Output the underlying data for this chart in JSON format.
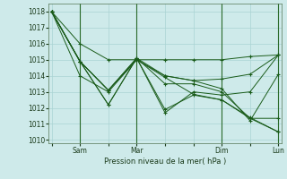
{
  "background_color": "#ceeaea",
  "grid_color": "#aad4d4",
  "line_color": "#1a5c1a",
  "marker_color": "#1a5c1a",
  "xlabel_text": "Pression niveau de la mer( hPa )",
  "ylim": [
    1009.8,
    1018.5
  ],
  "yticks": [
    1010,
    1011,
    1012,
    1013,
    1014,
    1015,
    1016,
    1017,
    1018
  ],
  "xtick_labels": [
    "",
    "Sam",
    "",
    "Mar",
    "",
    "",
    "Dim",
    "",
    "Lun"
  ],
  "xtick_positions": [
    0,
    1,
    2,
    3,
    4,
    5,
    6,
    7,
    8
  ],
  "vlines": [
    1,
    3,
    6,
    8
  ],
  "series": [
    [
      1018.0,
      1016.0,
      1015.0,
      1015.0,
      1015.0,
      1015.0,
      1015.0,
      1015.2,
      1015.3
    ],
    [
      1018.0,
      1014.0,
      1013.0,
      1015.0,
      1014.0,
      1013.7,
      1013.8,
      1014.1,
      1015.3
    ],
    [
      1018.0,
      1014.9,
      1012.2,
      1015.1,
      1011.7,
      1013.0,
      1012.8,
      1013.0,
      1015.3
    ],
    [
      1018.0,
      1014.9,
      1013.1,
      1015.1,
      1011.9,
      1012.8,
      1012.5,
      1011.4,
      1010.5
    ],
    [
      1018.0,
      1014.9,
      1013.1,
      1015.0,
      1013.9,
      1012.85,
      1012.5,
      1011.35,
      1010.5
    ],
    [
      1018.0,
      1014.9,
      1012.2,
      1015.1,
      1013.5,
      1013.5,
      1013.0,
      1011.35,
      1011.35
    ],
    [
      1018.0,
      1014.9,
      1013.1,
      1015.1,
      1014.0,
      1013.7,
      1013.2,
      1011.2,
      1014.1
    ]
  ]
}
